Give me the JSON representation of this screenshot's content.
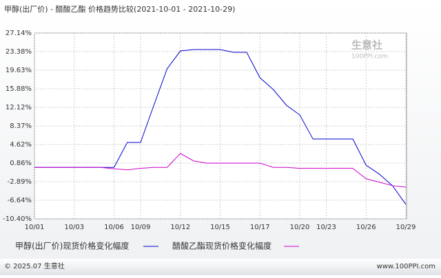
{
  "chart_data": {
    "type": "line",
    "title": "甲醇(出厂价) - 醋酸乙酯 价格趋势比较(2021-10-01 - 2021-10-29)",
    "categories": [
      "10/01",
      null,
      null,
      "10/03",
      null,
      null,
      "10/06",
      null,
      "10/09",
      null,
      null,
      "10/12",
      null,
      null,
      "10/15",
      null,
      null,
      "10/17",
      null,
      null,
      "10/20",
      null,
      "10/23",
      null,
      null,
      "10/26",
      null,
      null,
      "10/29"
    ],
    "series": [
      {
        "name": "甲醇(出厂价)现货价格变化幅度",
        "color": "#0000cc",
        "values": [
          0,
          0,
          0,
          0,
          0,
          0,
          0,
          5.03,
          5.03,
          12.54,
          19.91,
          23.52,
          23.8,
          23.8,
          23.8,
          23.25,
          23.25,
          18.1,
          15.74,
          12.54,
          10.59,
          5.72,
          5.72,
          5.72,
          5.72,
          0.44,
          -1.37,
          -3.74,
          -7.49
        ]
      },
      {
        "name": "醋酸乙酯现货价格变化幅度",
        "color": "#cc00cc",
        "values": [
          0,
          0,
          0,
          0,
          0,
          0,
          -0.3,
          -0.5,
          -0.2,
          0,
          0,
          2.8,
          1.3,
          0.85,
          0.85,
          0.85,
          0.85,
          0.85,
          0,
          0,
          -0.2,
          -0.2,
          -0.2,
          -0.2,
          -0.2,
          -2.3,
          -3.0,
          -3.7,
          -4.0
        ]
      }
    ],
    "ylim": [
      -10.4,
      27.14
    ],
    "yticks": [
      {
        "value": 27.14,
        "label": "27.14%"
      },
      {
        "value": 23.38,
        "label": "23.38%"
      },
      {
        "value": 19.63,
        "label": "19.63%"
      },
      {
        "value": 15.88,
        "label": "15.88%"
      },
      {
        "value": 12.12,
        "label": "12.12%"
      },
      {
        "value": 8.37,
        "label": "8.37%"
      },
      {
        "value": 4.62,
        "label": "4.62%"
      },
      {
        "value": 0.86,
        "label": "0.86%"
      },
      {
        "value": -2.89,
        "label": "-2.89%"
      },
      {
        "value": -6.64,
        "label": "-6.64%"
      },
      {
        "value": -10.4,
        "label": "-10.40%"
      }
    ],
    "grid": true,
    "watermark": [
      "生意社",
      "100PPI.com"
    ],
    "footer_left": "© 2025.07 生意社",
    "footer_right": "www.100PPI.com"
  }
}
